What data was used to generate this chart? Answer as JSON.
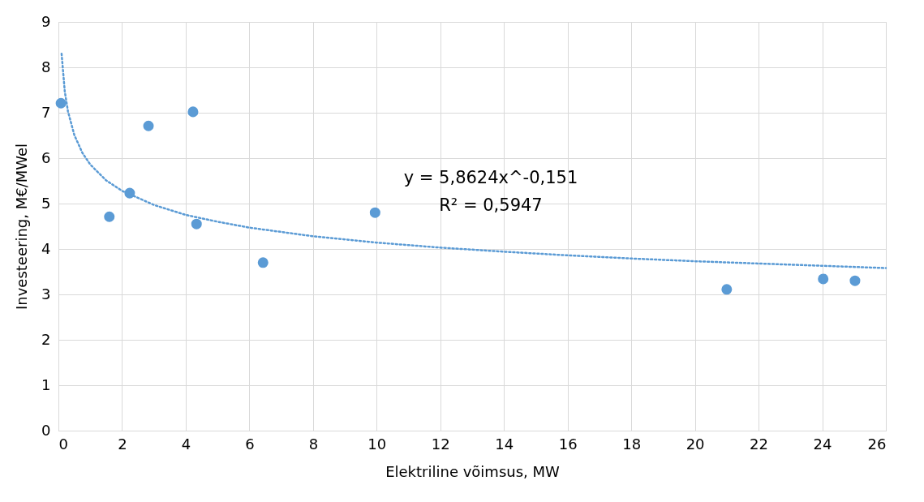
{
  "chart_data": {
    "type": "scatter",
    "xlabel": "Elektriline võimsus, MW",
    "ylabel": "Investeering, M€/MWel",
    "xlim": [
      0,
      26
    ],
    "xticks": [
      0,
      2,
      4,
      6,
      8,
      10,
      12,
      14,
      16,
      18,
      20,
      22,
      24,
      26
    ],
    "ylim": [
      0,
      9
    ],
    "yticks": [
      0,
      1,
      2,
      3,
      4,
      5,
      6,
      7,
      8,
      9
    ],
    "grid": true,
    "annotations": [
      "y = 5,8624x^-0,151",
      "R² = 0,5947"
    ],
    "series": [
      {
        "marker": "circle",
        "color": "#5b9bd5",
        "x": [
          0.08,
          1.6,
          2.24,
          2.83,
          4.23,
          4.34,
          6.43,
          9.95,
          21.0,
          24.03,
          25.03
        ],
        "values": [
          7.21,
          4.71,
          5.23,
          6.71,
          7.02,
          4.55,
          3.7,
          4.8,
          3.11,
          3.34,
          3.3
        ]
      },
      {
        "type": "line",
        "line_style": "dotted",
        "color": "#5b9bd5",
        "x": [
          0.1,
          0.2,
          0.3,
          0.5,
          0.75,
          1,
          1.5,
          2,
          3,
          4,
          5,
          6,
          8,
          10,
          12,
          14,
          16,
          18,
          20,
          22,
          24,
          26
        ],
        "values": [
          8.3,
          7.47,
          7.03,
          6.51,
          6.12,
          5.86,
          5.51,
          5.28,
          4.97,
          4.75,
          4.6,
          4.47,
          4.28,
          4.14,
          4.03,
          3.94,
          3.86,
          3.79,
          3.73,
          3.68,
          3.63,
          3.58
        ]
      }
    ]
  }
}
